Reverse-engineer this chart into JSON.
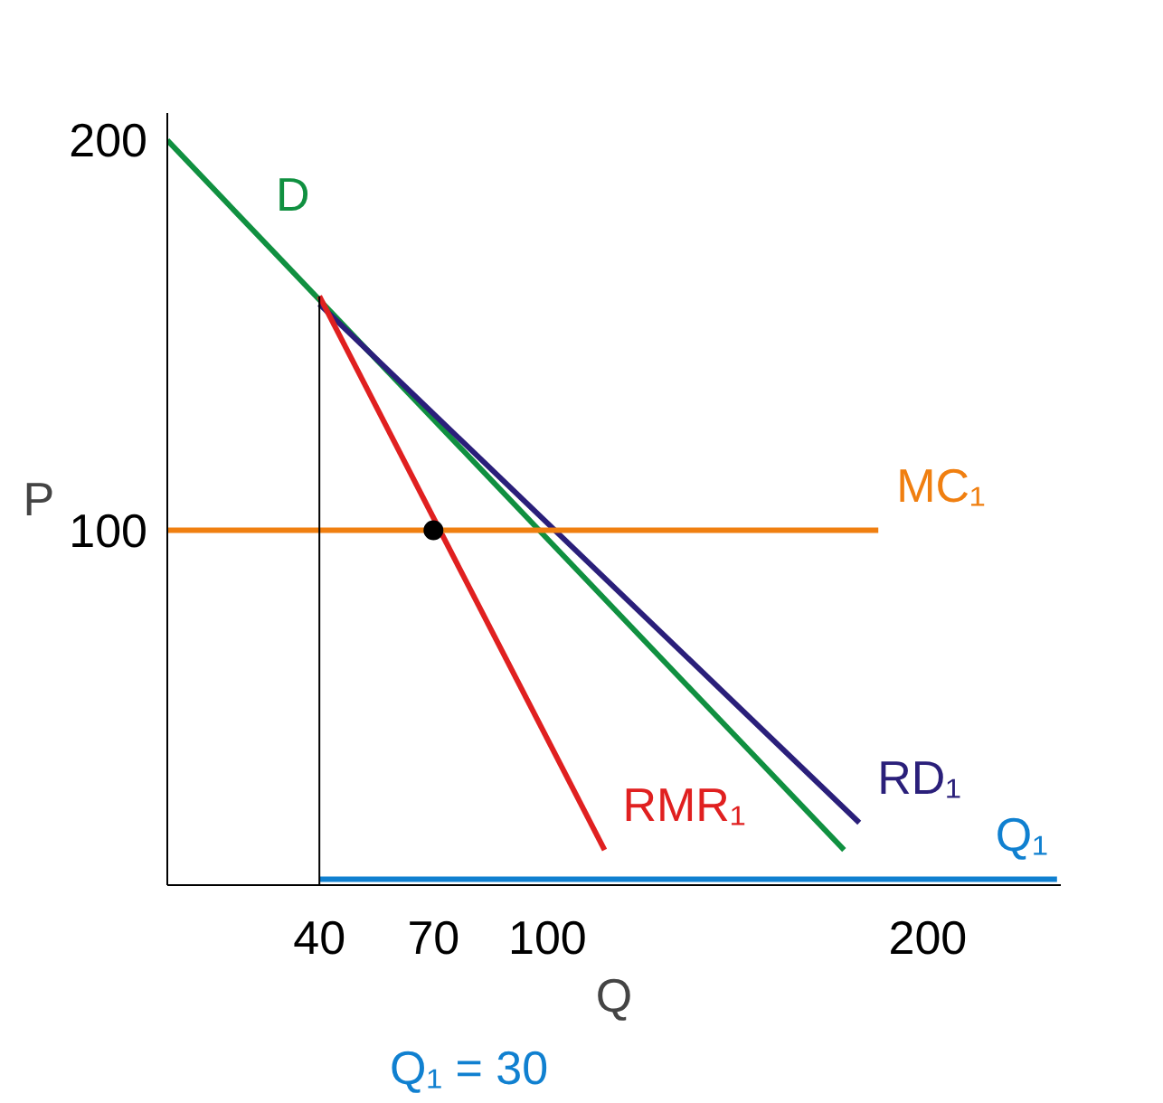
{
  "chart_data": {
    "type": "line",
    "xlabel": "Q",
    "ylabel": "P",
    "xlim": [
      0,
      235
    ],
    "ylim": [
      9,
      207
    ],
    "xticks": [
      40,
      70,
      100,
      200
    ],
    "yticks": [
      100,
      200
    ],
    "series": [
      {
        "name": "D",
        "color": "#109040",
        "x": [
          178,
          0
        ],
        "values": [
          18,
          200
        ]
      },
      {
        "name": "RD₁",
        "color": "#2a1f7a",
        "x": [
          40,
          182
        ],
        "values": [
          158,
          25
        ]
      },
      {
        "name": "RMR₁",
        "color": "#e02020",
        "x": [
          40,
          115
        ],
        "values": [
          160,
          18
        ]
      },
      {
        "name": "MC₁",
        "color": "#f07f10",
        "x": [
          0,
          187
        ],
        "values": [
          100,
          100
        ]
      },
      {
        "name": "Q₁",
        "color": "#1080d0",
        "x": [
          40,
          234
        ],
        "values": [
          10.5,
          10.5
        ]
      },
      {
        "color": "#000000",
        "x": [
          40,
          40
        ],
        "values": [
          9,
          160
        ]
      },
      {
        "type": "scatter",
        "color": "#000000",
        "x": [
          70
        ],
        "values": [
          100
        ]
      }
    ],
    "annotations": [
      "Q₁ = 30"
    ],
    "grid": false
  }
}
